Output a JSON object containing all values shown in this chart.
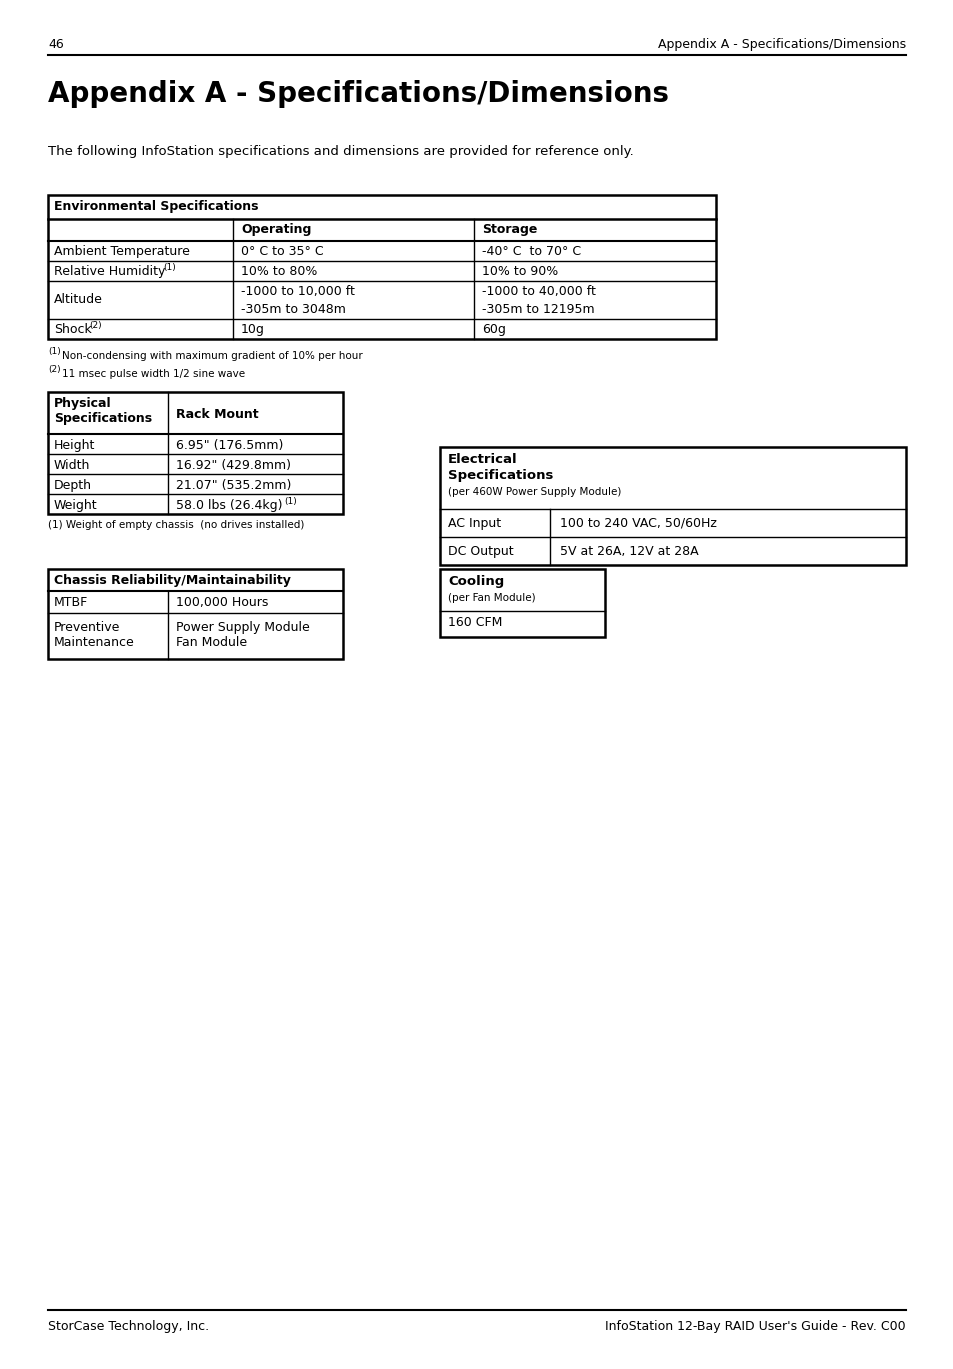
{
  "page_num": "46",
  "header_right": "Appendix A - Specifications/Dimensions",
  "title": "Appendix A - Specifications/Dimensions",
  "intro": "The following InfoStation specifications and dimensions are provided for reference only.",
  "env_table": {
    "header": "Environmental Specifications",
    "col_headers": [
      "",
      "Operating",
      "Storage"
    ],
    "rows": [
      [
        "Ambient Temperature",
        "0° C to 35° C",
        "-40° C  to 70° C"
      ],
      [
        "Relative Humidity",
        "10% to 80%",
        "10% to 90%"
      ],
      [
        "Altitude",
        "-1000 to 10,000 ft",
        "-1000 to 40,000 ft"
      ],
      [
        "Shock",
        "10g",
        "60g"
      ]
    ]
  },
  "phys_table": {
    "rows": [
      [
        "Height",
        "6.95\" (176.5mm)"
      ],
      [
        "Width",
        "16.92\" (429.8mm)"
      ],
      [
        "Depth",
        "21.07\" (535.2mm)"
      ],
      [
        "Weight",
        "58.0 lbs (26.4kg)"
      ]
    ]
  },
  "elec_table": {
    "rows": [
      [
        "AC Input",
        "100 to 240 VAC, 50/60Hz"
      ],
      [
        "DC Output",
        "5V at 26A, 12V at 28A"
      ]
    ]
  },
  "chassis_table": {
    "rows": [
      [
        "MTBF",
        "100,000 Hours"
      ],
      [
        "Preventive\nMaintenance",
        "Power Supply Module\nFan Module"
      ]
    ]
  },
  "footer_left": "StorCase Technology, Inc.",
  "footer_right": "InfoStation 12-Bay RAID User's Guide - Rev. C00"
}
